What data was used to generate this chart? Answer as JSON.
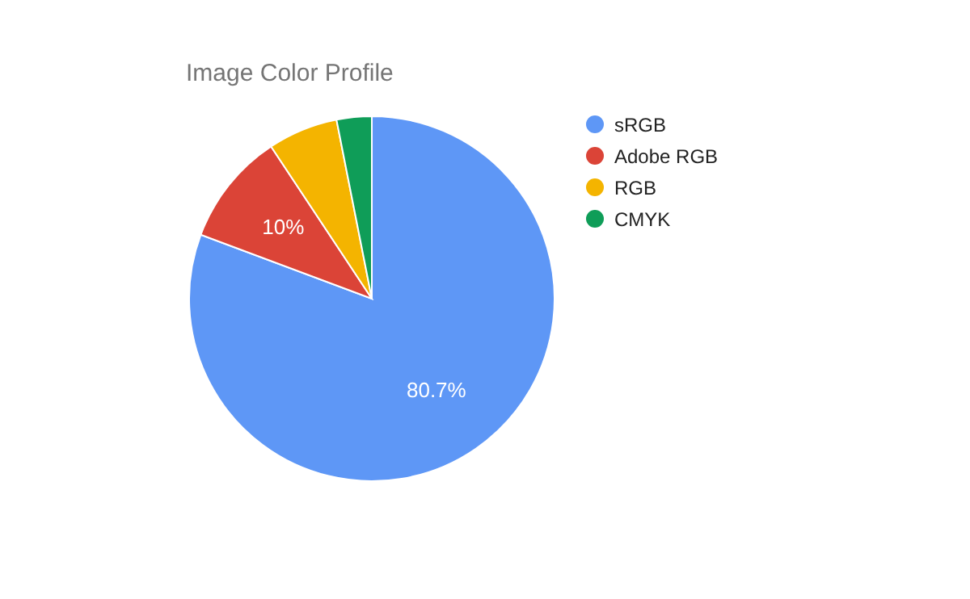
{
  "chart_data": {
    "type": "pie",
    "title": "Image Color Profile",
    "categories": [
      "sRGB",
      "Adobe RGB",
      "RGB",
      "CMYK"
    ],
    "values": [
      80.7,
      10,
      6.2,
      3.1
    ],
    "colors": [
      "#5e97f6",
      "#db4437",
      "#f4b400",
      "#0f9d58"
    ],
    "value_labels": [
      "80.7%",
      "10%",
      null,
      null
    ],
    "legend": "right"
  }
}
